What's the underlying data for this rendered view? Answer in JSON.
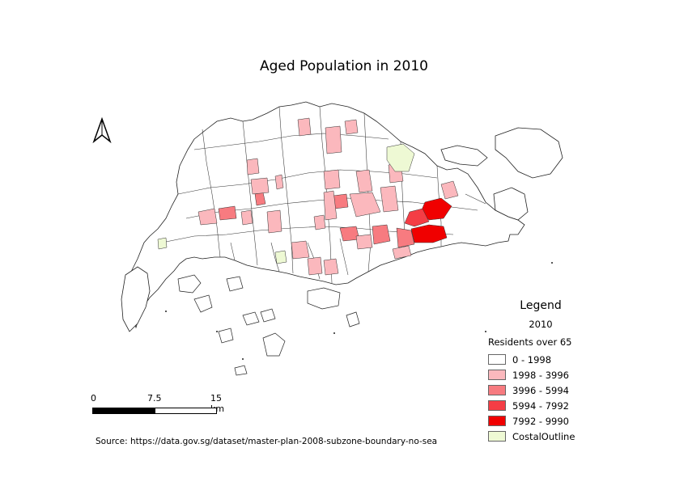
{
  "title": "Aged Population in 2010",
  "legend": {
    "title": "Legend",
    "layer": "2010",
    "group": "Residents over 65",
    "classes": [
      {
        "label": "0 - 1998",
        "color": "#ffffff"
      },
      {
        "label": "1998 - 3996",
        "color": "#fbb8bd"
      },
      {
        "label": "3996 - 5994",
        "color": "#f77b80"
      },
      {
        "label": "5994 - 7992",
        "color": "#f43d45"
      },
      {
        "label": "7992 - 9990",
        "color": "#f00000"
      }
    ],
    "coastal": {
      "label": "CostalOutline",
      "color": "#eef9d4"
    }
  },
  "scale": {
    "l0": "0",
    "l1": "7.5",
    "l2": "15 km"
  },
  "source": "Source: https://data.gov.sg/dataset/master-plan-2008-subzone-boundary-no-sea"
}
